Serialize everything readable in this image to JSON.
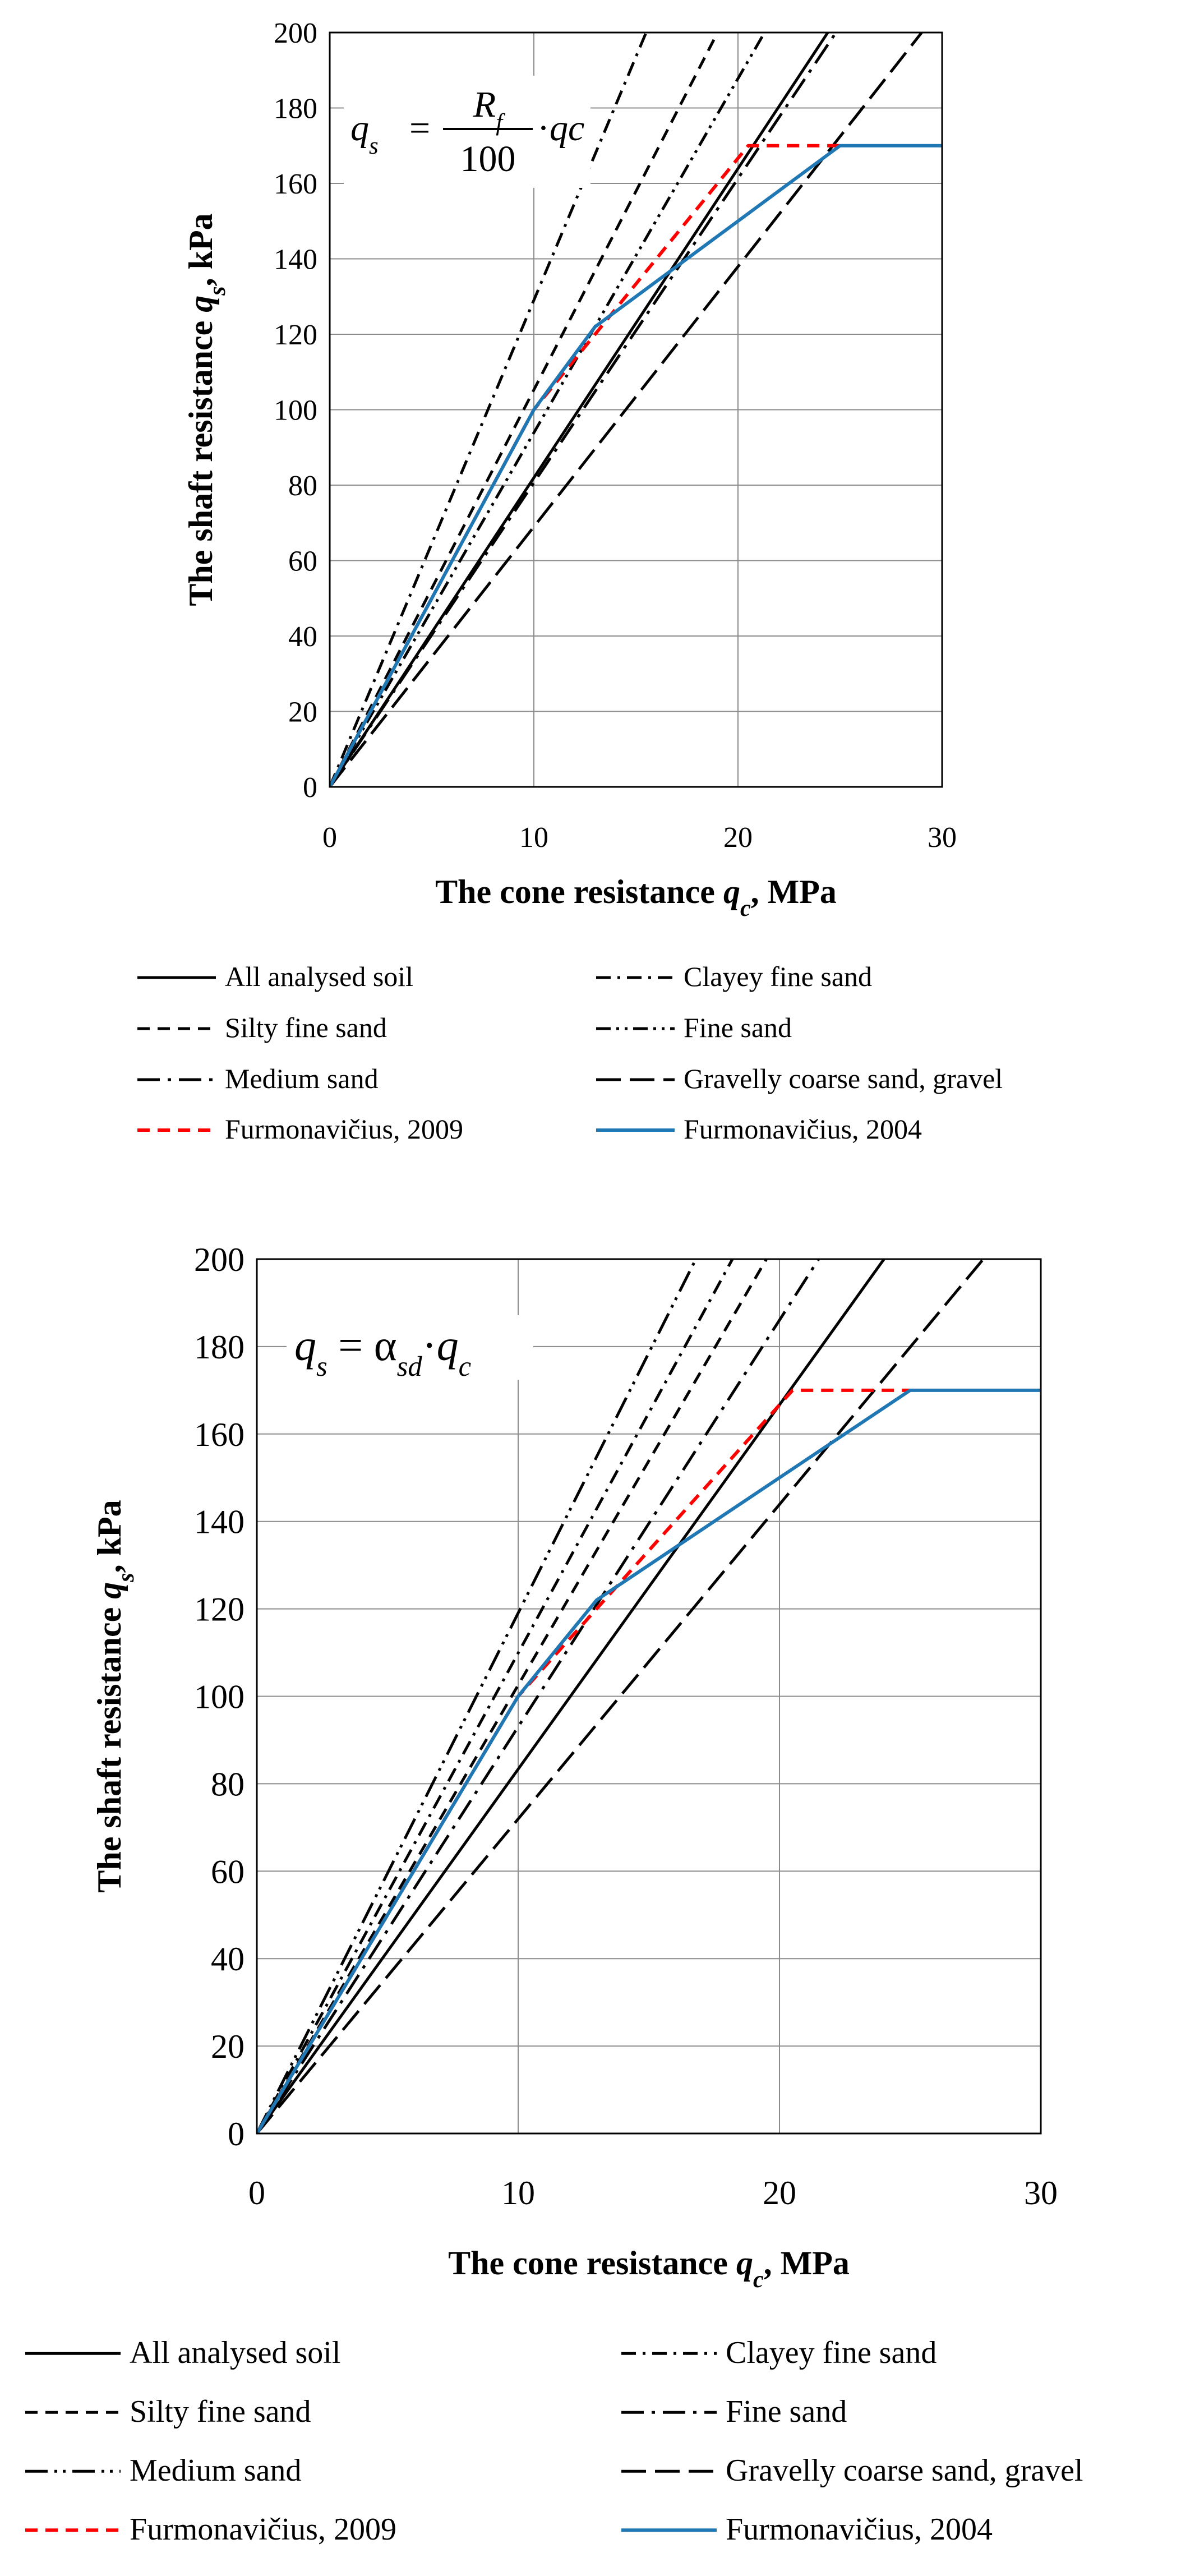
{
  "chart_data": [
    {
      "type": "line",
      "title": "",
      "formula": {
        "lhs_var": "q",
        "lhs_sub": "s",
        "equals": "=",
        "numerator_var": "R",
        "numerator_sub": "f",
        "denominator": "100",
        "dot": "·",
        "tail": "qc"
      },
      "xlabel": {
        "main": "The cone resistance ",
        "var": "q",
        "sub": "c",
        "unit": ", MPa"
      },
      "ylabel": {
        "main": "The shaft resistance ",
        "var": "q",
        "sub": "s",
        "unit": ", kPa"
      },
      "xlim": [
        0,
        30
      ],
      "ylim": [
        0,
        200
      ],
      "xticks": [
        0,
        10,
        20,
        30
      ],
      "yticks": [
        0,
        20,
        40,
        60,
        80,
        100,
        120,
        140,
        160,
        180,
        200
      ],
      "grid": true,
      "legend_position": "bottom",
      "series": [
        {
          "name": "All analysed soil",
          "style": "solid",
          "color": "#000000",
          "x": [
            0,
            24.4
          ],
          "y": [
            0,
            200
          ]
        },
        {
          "name": "Clayey fine sand",
          "style": "dashdot",
          "color": "#000000",
          "x": [
            0,
            15.5
          ],
          "y": [
            0,
            200
          ]
        },
        {
          "name": "Silty fine sand",
          "style": "dash",
          "color": "#000000",
          "x": [
            0,
            19.0
          ],
          "y": [
            0,
            200
          ]
        },
        {
          "name": "Fine sand",
          "style": "dashdotdot",
          "color": "#000000",
          "x": [
            0,
            21.3
          ],
          "y": [
            0,
            200
          ]
        },
        {
          "name": "Medium sand",
          "style": "longdashdot",
          "color": "#000000",
          "x": [
            0,
            24.8
          ],
          "y": [
            0,
            200
          ]
        },
        {
          "name": "Gravelly coarse sand, gravel",
          "style": "longdash",
          "color": "#000000",
          "x": [
            0,
            29.0
          ],
          "y": [
            0,
            200
          ]
        },
        {
          "name": "Furmonavičius, 2009",
          "style": "dash",
          "color": "#ff0000",
          "x": [
            0,
            10,
            13,
            20.5,
            25
          ],
          "y": [
            0,
            100,
            120,
            170,
            170
          ]
        },
        {
          "name": "Furmonavičius, 2004",
          "style": "solid",
          "color": "#1f77b4",
          "x": [
            0,
            10,
            13,
            25,
            30
          ],
          "y": [
            0,
            100,
            122,
            170,
            170
          ]
        }
      ]
    },
    {
      "type": "line",
      "title": "",
      "formula": {
        "lhs_var": "q",
        "lhs_sub": "s",
        "equals": "=",
        "alpha": "α",
        "alpha_sub": "sd",
        "dot": "·",
        "rhs_var": "q",
        "rhs_sub": "c"
      },
      "xlabel": {
        "main": "The cone resistance ",
        "var": "q",
        "sub": "c",
        "unit": ", MPa"
      },
      "ylabel": {
        "main": "The shaft resistance ",
        "var": "q",
        "sub": "s",
        "unit": ", kPa"
      },
      "xlim": [
        0,
        30
      ],
      "ylim": [
        0,
        200
      ],
      "xticks": [
        0,
        10,
        20,
        30
      ],
      "yticks": [
        0,
        20,
        40,
        60,
        80,
        100,
        120,
        140,
        160,
        180,
        200
      ],
      "grid": true,
      "legend_position": "bottom",
      "series": [
        {
          "name": "All analysed soil",
          "style": "solid",
          "color": "#000000",
          "x": [
            0,
            24.0
          ],
          "y": [
            0,
            200
          ]
        },
        {
          "name": "Clayey fine sand",
          "style": "dashdot",
          "color": "#000000",
          "x": [
            0,
            18.2
          ],
          "y": [
            0,
            200
          ]
        },
        {
          "name": "Silty fine sand",
          "style": "dash",
          "color": "#000000",
          "x": [
            0,
            19.5
          ],
          "y": [
            0,
            200
          ]
        },
        {
          "name": "Fine sand",
          "style": "longdashdot",
          "color": "#000000",
          "x": [
            0,
            21.5
          ],
          "y": [
            0,
            200
          ]
        },
        {
          "name": "Medium sand",
          "style": "longdashdotdot",
          "color": "#000000",
          "x": [
            0,
            16.8
          ],
          "y": [
            0,
            200
          ]
        },
        {
          "name": "Gravelly coarse sand, gravel",
          "style": "longdash",
          "color": "#000000",
          "x": [
            0,
            27.8
          ],
          "y": [
            0,
            200
          ]
        },
        {
          "name": "Furmonavičius, 2009",
          "style": "dash",
          "color": "#ff0000",
          "x": [
            0,
            10,
            13,
            20.5,
            25
          ],
          "y": [
            0,
            100,
            120,
            170,
            170
          ]
        },
        {
          "name": "Furmonavičius, 2004",
          "style": "solid",
          "color": "#1f77b4",
          "x": [
            0,
            10,
            13,
            25,
            30
          ],
          "y": [
            0,
            100,
            122,
            170,
            170
          ]
        }
      ]
    }
  ]
}
